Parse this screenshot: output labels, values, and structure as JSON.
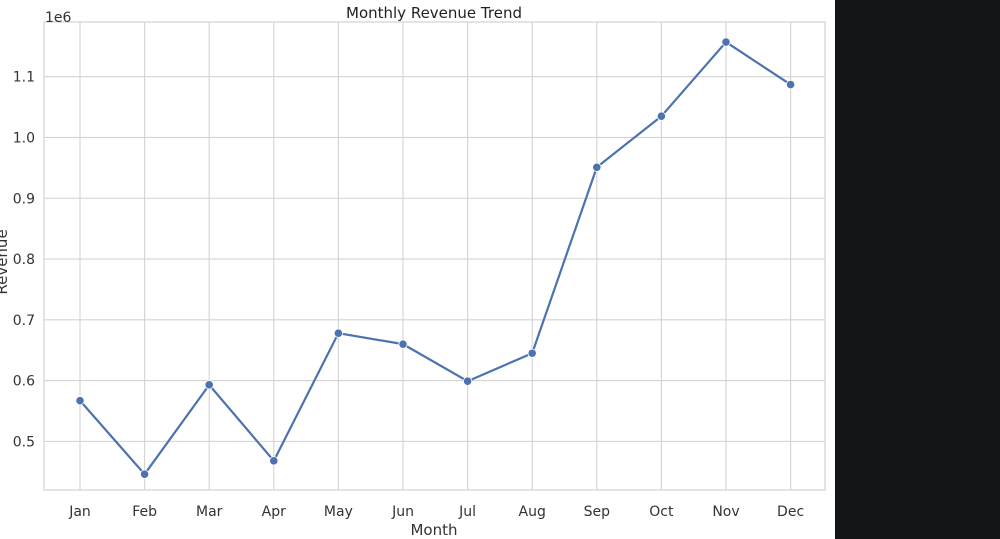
{
  "chart_data": {
    "type": "line",
    "title": "Monthly Revenue Trend",
    "xlabel": "Month",
    "ylabel": "Revenue",
    "y_offset_label": "1e6",
    "categories": [
      "Jan",
      "Feb",
      "Mar",
      "Apr",
      "May",
      "Jun",
      "Jul",
      "Aug",
      "Sep",
      "Oct",
      "Nov",
      "Dec"
    ],
    "series": [
      {
        "values": [
          567000,
          446000,
          593000,
          468000,
          678000,
          660000,
          599000,
          645000,
          951000,
          1035000,
          1157000,
          1087000
        ],
        "color": "#4c72b0"
      }
    ],
    "ylim": [
      420000,
      1190000
    ],
    "yticks": [
      0.5,
      0.6,
      0.7,
      0.8,
      0.9,
      1.0,
      1.1
    ],
    "ytick_labels": [
      "0.5",
      "0.6",
      "0.7",
      "0.8",
      "0.9",
      "1.0",
      "1.1"
    ],
    "grid": true,
    "marker": "circle"
  },
  "colors": {
    "background": "#ffffff",
    "grid": "#d3d3d3",
    "line": "#4c72b0",
    "side_panel": "#141517"
  }
}
